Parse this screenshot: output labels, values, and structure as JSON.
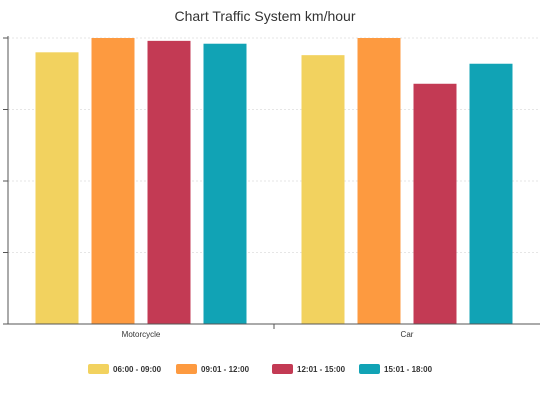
{
  "chart_data": {
    "type": "bar",
    "title": "Chart Traffic System km/hour",
    "categories": [
      "Motorcycle",
      "Car"
    ],
    "series": [
      {
        "name": "06:00 - 09:00",
        "color": "#f2d25f",
        "values": [
          95,
          94
        ]
      },
      {
        "name": "09:01 - 12:00",
        "color": "#fd9a40",
        "values": [
          100,
          100
        ]
      },
      {
        "name": "12:01 - 15:00",
        "color": "#c33a54",
        "values": [
          99,
          84
        ]
      },
      {
        "name": "15:01 - 18:00",
        "color": "#11a3b5",
        "values": [
          98,
          91
        ]
      }
    ],
    "ylim": [
      0,
      100
    ],
    "yticks": [
      0,
      25,
      50,
      75,
      100
    ],
    "grid": true,
    "legend_position": "bottom"
  }
}
